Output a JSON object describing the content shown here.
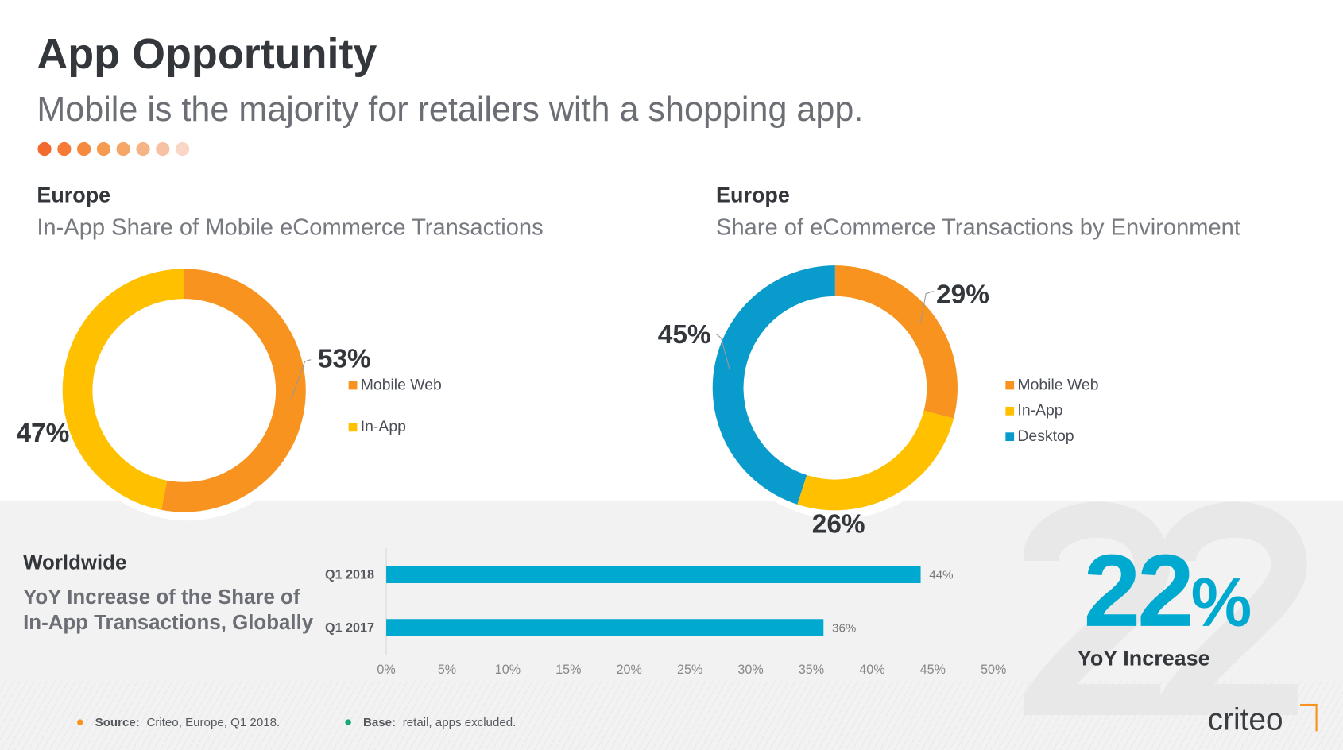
{
  "header": {
    "title": "App Opportunity",
    "subtitle": "Mobile is the majority for retailers with a shopping app.",
    "dot_colors": [
      "#f26a2e",
      "#f47a36",
      "#f5893d",
      "#f59a51",
      "#f6a768",
      "#f5b486",
      "#f7c2a3",
      "#fad6c6"
    ]
  },
  "colors": {
    "mobile_web": "#f7931e",
    "in_app": "#ffc000",
    "desktop": "#0a9bcd",
    "bar": "#00a9d0"
  },
  "chart_data": [
    {
      "type": "pie",
      "donut": true,
      "region": "Europe",
      "title": "In-App Share of Mobile eCommerce Transactions",
      "slices": [
        {
          "name": "Mobile Web",
          "value": 53,
          "label": "53%",
          "color": "#f7931e"
        },
        {
          "name": "In-App",
          "value": 47,
          "label": "47%",
          "color": "#ffc000"
        }
      ],
      "legend": [
        "Mobile Web",
        "In-App"
      ],
      "legend_placement": "right"
    },
    {
      "type": "pie",
      "donut": true,
      "region": "Europe",
      "title": "Share of eCommerce Transactions by Environment",
      "slices": [
        {
          "name": "Mobile Web",
          "value": 29,
          "label": "29%",
          "color": "#f7931e"
        },
        {
          "name": "In-App",
          "value": 26,
          "label": "26%",
          "color": "#ffc000"
        },
        {
          "name": "Desktop",
          "value": 45,
          "label": "45%",
          "color": "#0a9bcd"
        }
      ],
      "legend": [
        "Mobile Web",
        "In-App",
        "Desktop"
      ],
      "legend_placement": "right"
    },
    {
      "type": "bar",
      "orientation": "horizontal",
      "region": "Worldwide",
      "title": "YoY Increase of the Share of In-App Transactions, Globally",
      "categories": [
        "Q1 2018",
        "Q1 2017"
      ],
      "values": [
        44,
        36
      ],
      "value_labels": [
        "44%",
        "36%"
      ],
      "xlim": [
        0,
        50
      ],
      "xticks": [
        "0%",
        "5%",
        "10%",
        "15%",
        "20%",
        "25%",
        "30%",
        "35%",
        "40%",
        "45%",
        "50%"
      ],
      "grid": false
    }
  ],
  "highlight": {
    "value": "22",
    "unit": "%",
    "label": "YoY Increase",
    "ghost": "22"
  },
  "footer": {
    "source_label": "Source:",
    "source_text": "Criteo, Europe, Q1 2018.",
    "base_label": "Base:",
    "base_text": "retail, apps excluded.",
    "source_dot": "#f7931e",
    "base_dot": "#1aa67a"
  },
  "logo": "criteo"
}
